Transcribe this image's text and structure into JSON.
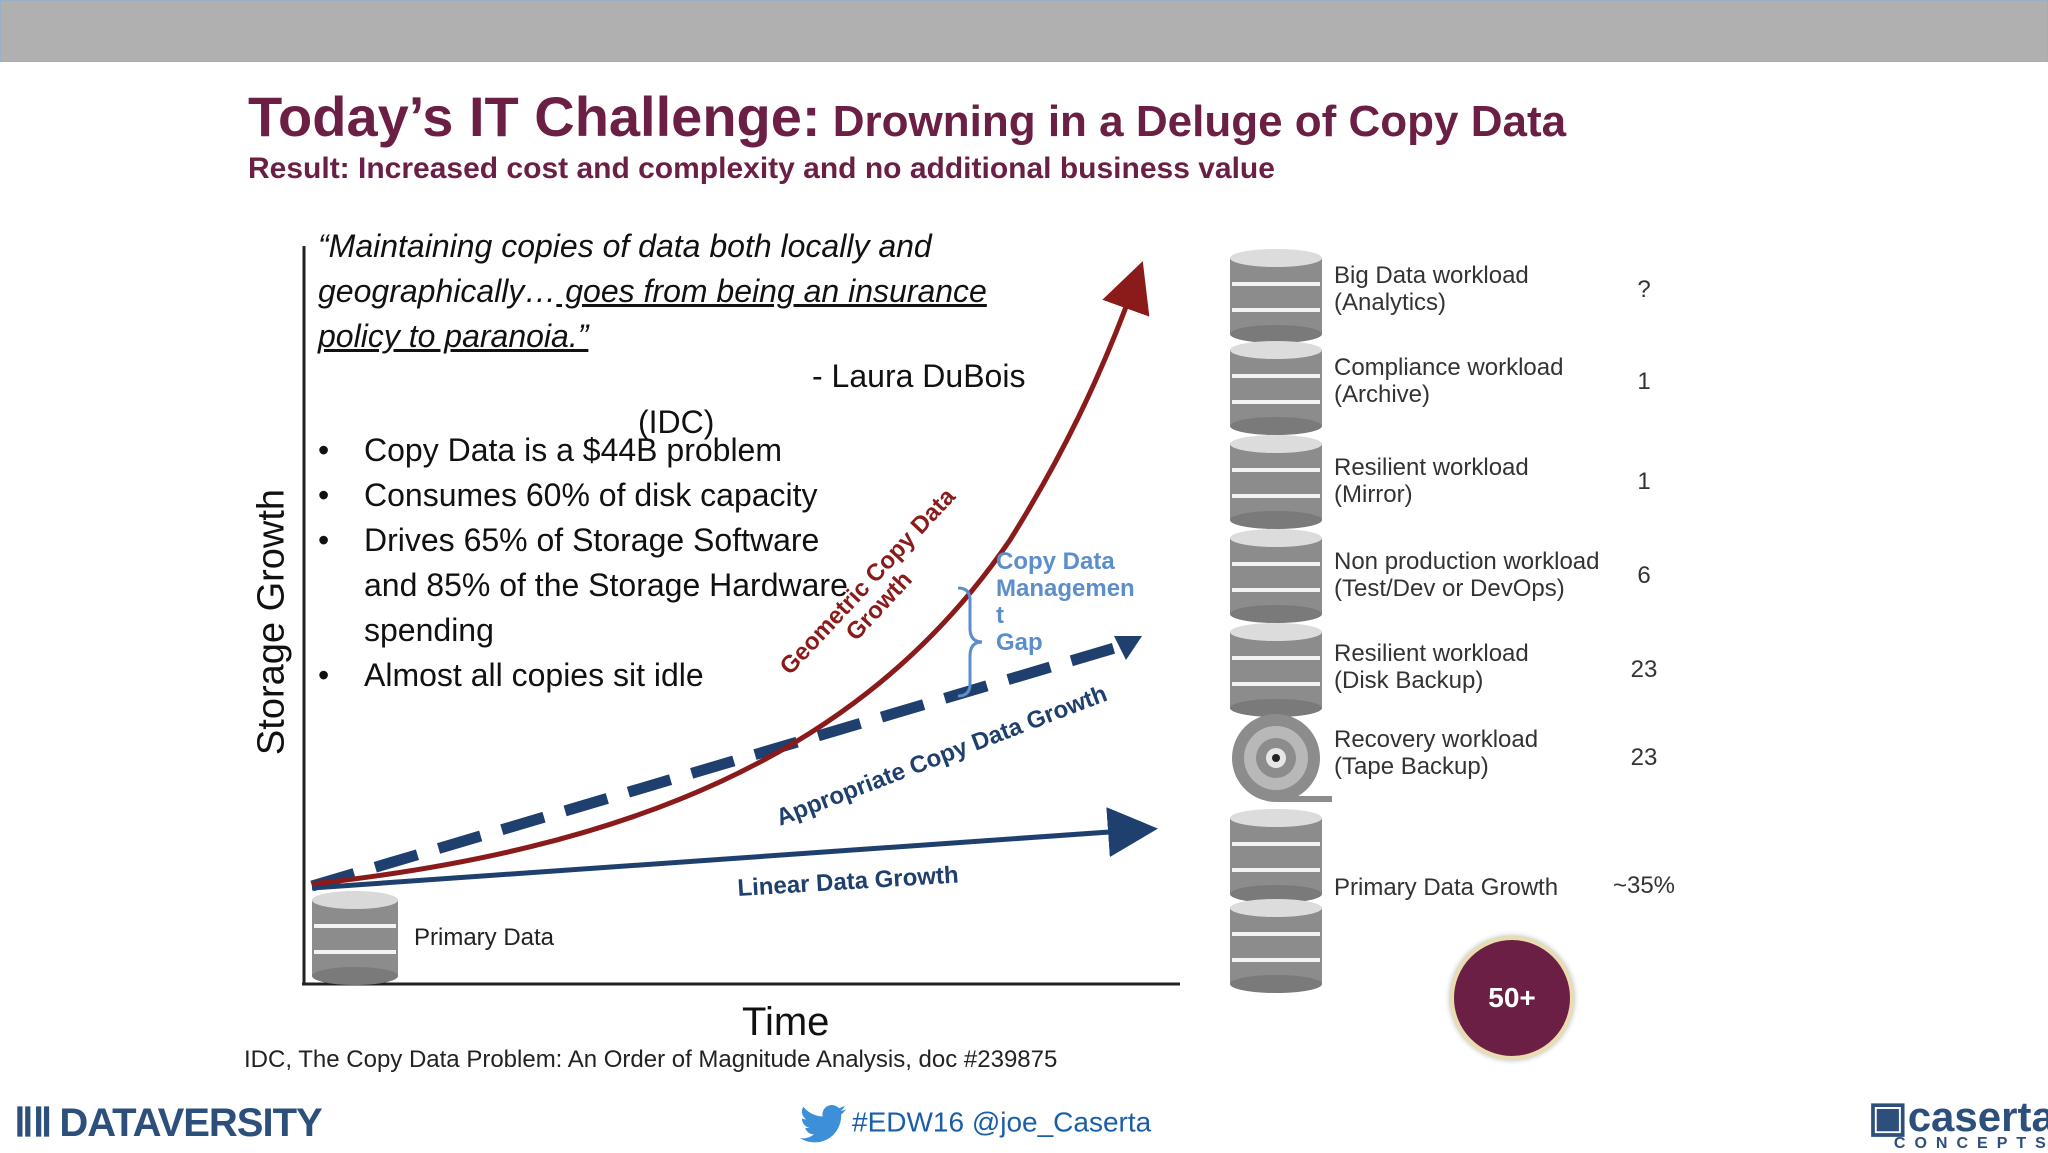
{
  "slide": {
    "title_main": "Today’s IT Challenge:",
    "title_rest": " Drowning in a Deluge of Copy Data",
    "subtitle": "Result: Increased cost and complexity and no additional business value"
  },
  "quote": {
    "line1": "“Maintaining copies of data both locally and",
    "line2_a": "geographically…",
    "line2_b": " goes from being an insurance",
    "line3": "policy to paranoia.”",
    "author": "- Laura DuBois",
    "org": "(IDC)"
  },
  "bullets": [
    "Copy Data is a $44B problem",
    "Consumes 60% of disk capacity",
    "Drives 65% of Storage Software and 85% of the Storage Hardware spending",
    "Almost all copies sit idle"
  ],
  "chart_data": {
    "type": "line",
    "xlabel": "Time",
    "ylabel": "Storage Growth",
    "series": [
      {
        "name": "Geometric Copy Data Growth",
        "label_line1": "Geometric Copy Data",
        "label_line2": "Growth",
        "shape": "exponential",
        "color": "#8b1a1a"
      },
      {
        "name": "Appropriate Copy Data Growth",
        "shape": "linear-steep",
        "style": "dashed",
        "color": "#1f3f6e"
      },
      {
        "name": "Linear Data Growth",
        "shape": "linear-shallow",
        "color": "#1f3f6e"
      }
    ],
    "annotations": {
      "gap_label_lines": [
        "Copy Data",
        "Managemen",
        "t",
        "Gap"
      ],
      "origin_label": "Primary Data"
    },
    "source": "IDC, The Copy Data Problem: An Order of Magnitude Analysis, doc #239875"
  },
  "workloads": [
    {
      "label1": "Big Data workload",
      "label2": "(Analytics)",
      "count": "?",
      "icon": "database-icon"
    },
    {
      "label1": "Compliance workload",
      "label2": "(Archive)",
      "count": "1",
      "icon": "database-icon"
    },
    {
      "label1": "Resilient workload",
      "label2": "(Mirror)",
      "count": "1",
      "icon": "database-icon"
    },
    {
      "label1": "Non production workload",
      "label2": "(Test/Dev or DevOps)",
      "count": "6",
      "icon": "database-icon"
    },
    {
      "label1": "Resilient workload",
      "label2": "(Disk Backup)",
      "count": "23",
      "icon": "database-icon"
    },
    {
      "label1": "Recovery workload",
      "label2": "(Tape Backup)",
      "count": "23",
      "icon": "tape-icon"
    },
    {
      "label1": "Primary Data Growth",
      "label2": "",
      "count": "~35%",
      "icon": "database-icon"
    }
  ],
  "total_badge": "50+",
  "footer": {
    "dataversity": "DATAVERSITY",
    "hashtag": "#EDW16 @joe_Caserta",
    "caserta_main": "caserta",
    "caserta_sub": "CONCEPTS"
  },
  "colors": {
    "title": "#6b1f45",
    "geometric": "#8b1a1a",
    "linear": "#1f3f6e",
    "gap": "#5b8ecb",
    "badge": "#6b1f45"
  }
}
